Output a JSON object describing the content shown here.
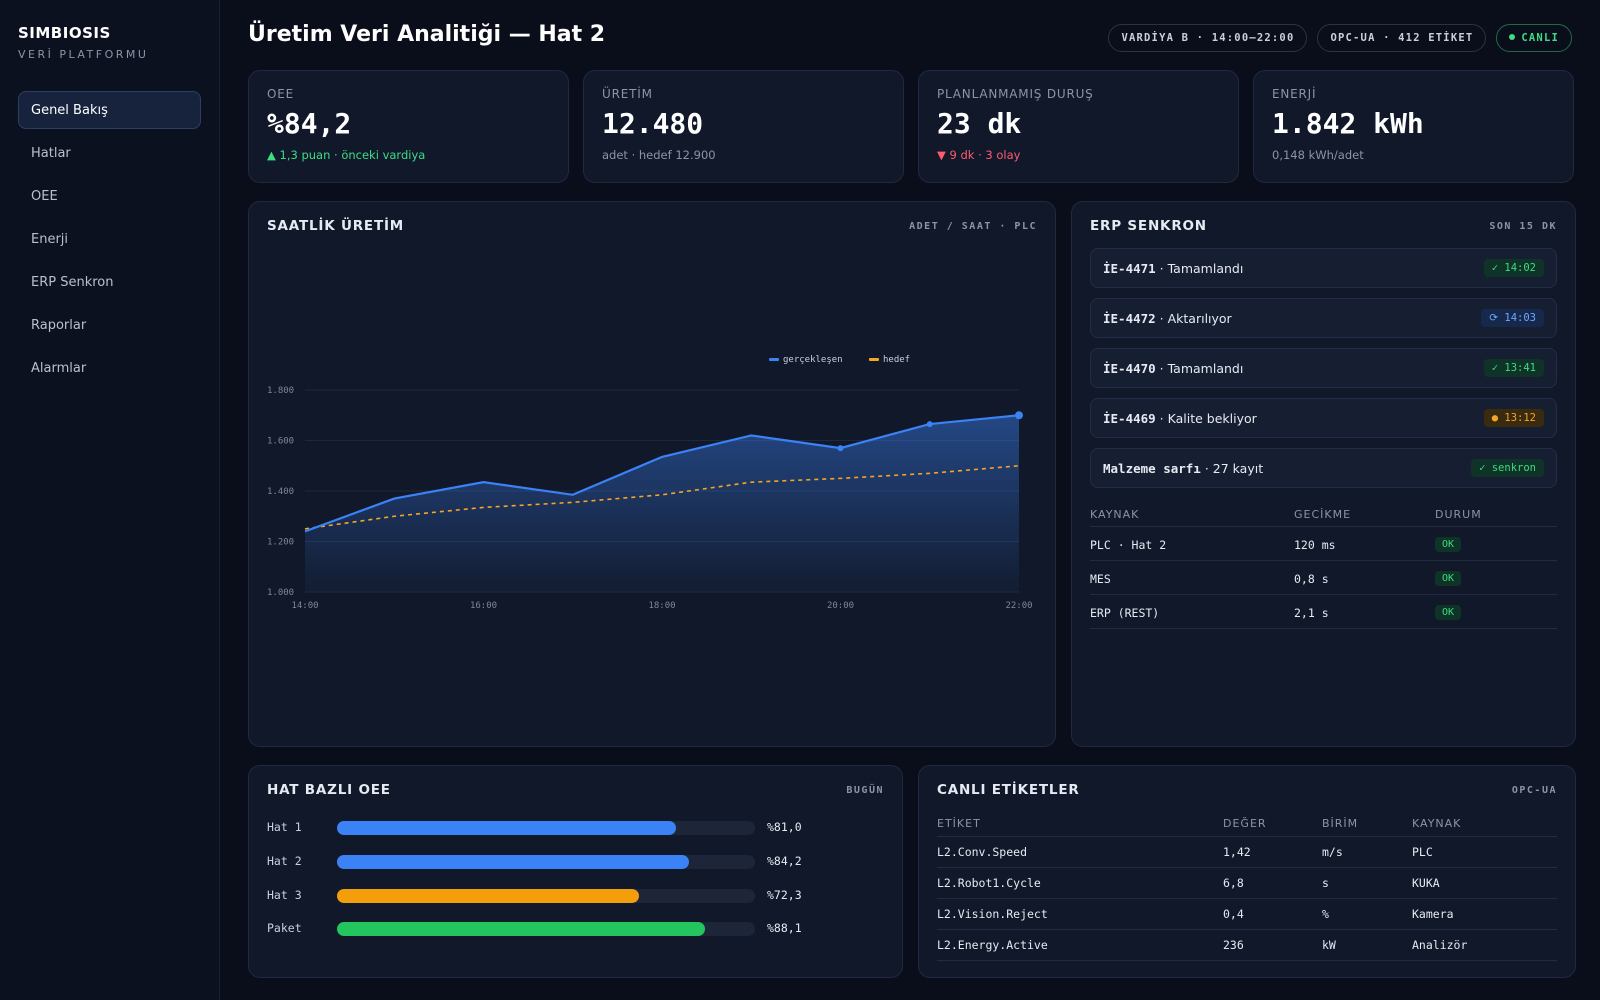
{
  "brand": {
    "name": "SIMBIOSIS",
    "subtitle": "VERİ PLATFORMU"
  },
  "nav": [
    {
      "label": "Genel Bakış",
      "active": true
    },
    {
      "label": "Hatlar"
    },
    {
      "label": "OEE"
    },
    {
      "label": "Enerji"
    },
    {
      "label": "ERP Senkron"
    },
    {
      "label": "Raporlar"
    },
    {
      "label": "Alarmlar"
    }
  ],
  "header": {
    "title": "Üretim Veri Analitiği — Hat 2",
    "chips": [
      "VARDİYA B · 14:00–22:00",
      "OPC-UA · 412 ETİKET"
    ],
    "live_label": "CANLI"
  },
  "kpis": [
    {
      "label": "OEE",
      "value": "%84,2",
      "sub": "▲ 1,3 puan · önceki vardiya",
      "trend": "up"
    },
    {
      "label": "ÜRETİM",
      "value": "12.480",
      "sub": "adet · hedef 12.900",
      "trend": "neutral"
    },
    {
      "label": "PLANLANMAMIŞ DURUŞ",
      "value": "23 dk",
      "sub": "▼ 9 dk · 3 olay",
      "trend": "down"
    },
    {
      "label": "ENERJİ",
      "value": "1.842 kWh",
      "sub": "0,148 kWh/adet",
      "trend": "neutral"
    }
  ],
  "hourly": {
    "title": "SAATLİK ÜRETİM",
    "meta": "ADET / SAAT · PLC",
    "chart_data": {
      "type": "line",
      "x": [
        "14:00",
        "15:00",
        "16:00",
        "17:00",
        "18:00",
        "19:00",
        "20:00",
        "21:00",
        "22:00"
      ],
      "x_ticks": [
        "14:00",
        "16:00",
        "18:00",
        "20:00",
        "22:00"
      ],
      "y_ticks": [
        "1.000",
        "1.200",
        "1.400",
        "1.600",
        "1.800"
      ],
      "ylim": [
        1000,
        1800
      ],
      "series": [
        {
          "name": "gerçekleşen",
          "color": "#3b82f6",
          "values": [
            1240,
            1370,
            1435,
            1385,
            1535,
            1620,
            1570,
            1665,
            1700
          ],
          "markers": [
            6,
            7,
            8
          ]
        },
        {
          "name": "hedef",
          "color": "#f5a623",
          "dashed": true,
          "values": [
            1250,
            1300,
            1335,
            1355,
            1385,
            1435,
            1450,
            1470,
            1500
          ]
        }
      ],
      "grid": true,
      "legend": "top-right"
    }
  },
  "erp": {
    "title": "ERP SENKRON",
    "meta": "SON 15 DK",
    "items": [
      {
        "code": "İE-4471",
        "text": " · Tamamlandı",
        "badge": "✓ 14:02",
        "status": "ok"
      },
      {
        "code": "İE-4472",
        "text": " · Aktarılıyor",
        "badge": "⟳ 14:03",
        "status": "sync"
      },
      {
        "code": "İE-4470",
        "text": " · Tamamlandı",
        "badge": "✓ 13:41",
        "status": "ok"
      },
      {
        "code": "İE-4469",
        "text": " · Kalite bekliyor",
        "badge": "● 13:12",
        "status": "warn"
      },
      {
        "code": "Malzeme sarfı",
        "text": " · 27 kayıt",
        "badge": "✓ senkron",
        "status": "ok"
      }
    ],
    "table": {
      "headers": [
        "KAYNAK",
        "GECİKME",
        "DURUM"
      ],
      "rows": [
        [
          "PLC · Hat 2",
          "120 ms",
          "OK"
        ],
        [
          "MES",
          "0,8 s",
          "OK"
        ],
        [
          "ERP (REST)",
          "2,1 s",
          "OK"
        ]
      ]
    }
  },
  "oee": {
    "title": "HAT BAZLI OEE",
    "meta": "BUGÜN",
    "chart_data": {
      "type": "bar",
      "categories": [
        "Hat 1",
        "Hat 2",
        "Hat 3",
        "Paket"
      ],
      "values": [
        81.0,
        84.2,
        72.3,
        88.1
      ],
      "labels": [
        "%81,0",
        "%84,2",
        "%72,3",
        "%88,1"
      ],
      "colors": [
        "#3b82f6",
        "#3b82f6",
        "#f59e0b",
        "#22c55e"
      ],
      "max": 100
    }
  },
  "tags": {
    "title": "CANLI ETİKETLER",
    "meta": "OPC-UA",
    "headers": [
      "ETİKET",
      "DEĞER",
      "BİRİM",
      "KAYNAK"
    ],
    "rows": [
      [
        "L2.Conv.Speed",
        "1,42",
        "m/s",
        "PLC"
      ],
      [
        "L2.Robot1.Cycle",
        "6,8",
        "s",
        "KUKA"
      ],
      [
        "L2.Vision.Reject",
        "0,4",
        "%",
        "Kamera"
      ],
      [
        "L2.Energy.Active",
        "236",
        "kW",
        "Analizör"
      ]
    ]
  }
}
